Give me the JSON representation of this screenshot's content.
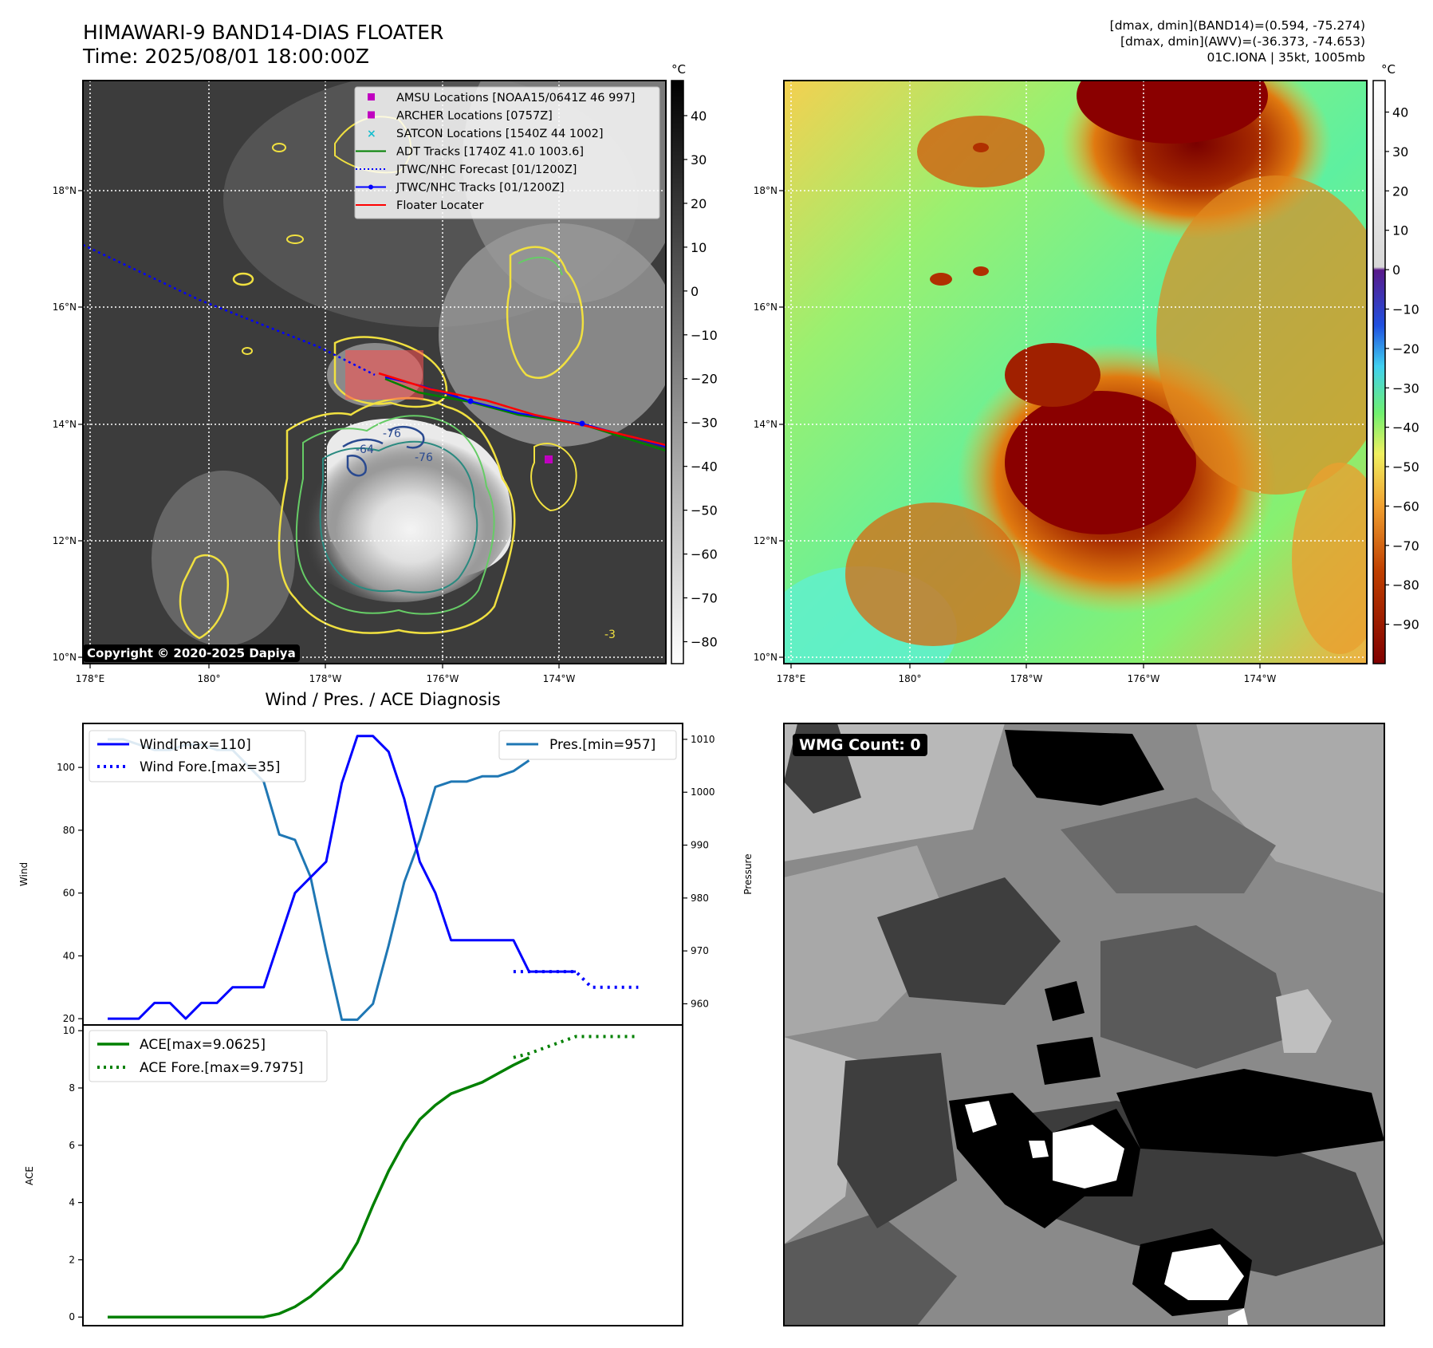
{
  "header": {
    "title_line1": "HIMAWARI-9 BAND14-DIAS FLOATER",
    "title_line2": "Time: 2025/08/01 18:00:00Z",
    "info_line1": "[dmax, dmin](BAND14)=(0.594, -75.274)",
    "info_line2": "[dmax, dmin](AWV)=(-36.373, -74.653)",
    "info_line3": "01C.IONA | 35kt, 1005mb"
  },
  "copyright": "Copyright © 2020-2025 Dapiya",
  "wmg_label": "WMG Count: 0",
  "colors": {
    "wind": "#0000ff",
    "pressure": "#1f77b4",
    "ace": "#008000",
    "adt": "#008000",
    "jtwc": "#0000ff",
    "floater": "#ff0000",
    "amsu": "#c000c0",
    "satcon": "#17becf"
  },
  "chart_data": [
    {
      "type": "heatmap",
      "panel": "IR grayscale with contours",
      "unit_label": "°C",
      "colorbar_ticks": [
        40,
        30,
        20,
        10,
        0,
        -10,
        -20,
        -30,
        -40,
        -50,
        -60,
        -70,
        -80
      ],
      "colorbar_range": [
        -85,
        48
      ],
      "x_ticks": [
        "178°E",
        "180°",
        "178°W",
        "176°W",
        "174°W"
      ],
      "y_ticks": [
        "18°N",
        "16°N",
        "14°N",
        "12°N",
        "10°N"
      ],
      "contour_labels": [
        "-64",
        "-76",
        "-76",
        "-3"
      ],
      "legend": [
        {
          "label": "AMSU Locations [NOAA15/0641Z 46 997]",
          "marker": "square",
          "color": "#c000c0"
        },
        {
          "label": "ARCHER Locations [0757Z]",
          "marker": "square",
          "color": "#c000c0"
        },
        {
          "label": "SATCON Locations [1540Z 44 1002]",
          "marker": "x",
          "color": "#17becf"
        },
        {
          "label": "ADT Tracks [1740Z 41.0 1003.6]",
          "marker": "line",
          "color": "#008000"
        },
        {
          "label": "JTWC/NHC Forecast [01/1200Z]",
          "marker": "dotted",
          "color": "#0000ff"
        },
        {
          "label": "JTWC/NHC Tracks [01/1200Z]",
          "marker": "line-dot",
          "color": "#0000ff"
        },
        {
          "label": "Floater Locater",
          "marker": "line",
          "color": "#ff0000"
        }
      ]
    },
    {
      "type": "heatmap",
      "panel": "IR colour enhanced",
      "unit_label": "°C",
      "colorbar_ticks": [
        40,
        30,
        20,
        10,
        0,
        -10,
        -20,
        -30,
        -40,
        -50,
        -60,
        -70,
        -80,
        -90
      ],
      "colorbar_range": [
        -100,
        48
      ],
      "x_ticks": [
        "178°E",
        "180°",
        "178°W",
        "176°W",
        "174°W"
      ],
      "y_ticks": [
        "18°N",
        "16°N",
        "14°N",
        "12°N",
        "10°N"
      ]
    },
    {
      "type": "line",
      "panel": "wind-pressure",
      "title": "Wind / Pres. / ACE Diagnosis",
      "ylabel": "Wind",
      "y2label": "Pressure",
      "ylim": [
        18,
        114
      ],
      "y2lim": [
        956,
        1013
      ],
      "yticks": [
        20,
        40,
        60,
        80,
        100
      ],
      "y2ticks": [
        960,
        970,
        980,
        990,
        1000,
        1010
      ],
      "xlim": [
        0,
        35
      ],
      "series": [
        {
          "name": "Wind[max=110]",
          "axis": "left",
          "style": "solid",
          "x": [
            0,
            1,
            2,
            3,
            4,
            5,
            6,
            7,
            8,
            9,
            10,
            11,
            12,
            13,
            14,
            15,
            16,
            17,
            18,
            19,
            20,
            21,
            22,
            23,
            24,
            25,
            26,
            27,
            28,
            29,
            30
          ],
          "y": [
            20,
            20,
            20,
            25,
            25,
            20,
            25,
            25,
            30,
            30,
            30,
            45,
            60,
            65,
            70,
            95,
            110,
            110,
            105,
            90,
            70,
            60,
            45,
            45,
            45,
            45,
            45,
            35,
            35,
            35,
            35
          ]
        },
        {
          "name": "Wind Fore.[max=35]",
          "axis": "left",
          "style": "dotted",
          "x": [
            26,
            27,
            28,
            29,
            30,
            31,
            32,
            33,
            34
          ],
          "y": [
            35,
            35,
            35,
            35,
            35,
            30,
            30,
            30,
            30
          ]
        },
        {
          "name": "Pres.[min=957]",
          "axis": "right",
          "style": "solid",
          "x": [
            0,
            1,
            2,
            3,
            4,
            5,
            6,
            7,
            8,
            9,
            10,
            11,
            12,
            13,
            14,
            15,
            16,
            17,
            18,
            19,
            20,
            21,
            22,
            23,
            24,
            25,
            26,
            27
          ],
          "y": [
            1010,
            1010,
            1009,
            1008,
            1008,
            1009,
            1009,
            1008,
            1008,
            1005,
            1002,
            992,
            991,
            984,
            970,
            957,
            957,
            960,
            971,
            983,
            991,
            1001,
            1002,
            1002,
            1003,
            1003,
            1004,
            1006
          ]
        }
      ]
    },
    {
      "type": "line",
      "panel": "ace",
      "ylabel": "ACE",
      "ylim": [
        -0.3,
        10.2
      ],
      "yticks": [
        0,
        2,
        4,
        6,
        8,
        10
      ],
      "xlim": [
        0,
        35
      ],
      "series": [
        {
          "name": "ACE[max=9.0625]",
          "style": "solid",
          "x": [
            0,
            1,
            2,
            3,
            4,
            5,
            6,
            7,
            8,
            9,
            10,
            11,
            12,
            13,
            14,
            15,
            16,
            17,
            18,
            19,
            20,
            21,
            22,
            23,
            24,
            25,
            26,
            27
          ],
          "y": [
            0,
            0,
            0,
            0,
            0,
            0,
            0,
            0,
            0,
            0,
            0,
            0.12,
            0.36,
            0.72,
            1.2,
            1.7,
            2.6,
            3.9,
            5.1,
            6.1,
            6.9,
            7.4,
            7.8,
            8.0,
            8.2,
            8.5,
            8.8,
            9.0625
          ]
        },
        {
          "name": "ACE Fore.[max=9.7975]",
          "style": "dotted",
          "x": [
            26,
            27,
            28,
            29,
            30,
            31,
            32,
            33,
            34
          ],
          "y": [
            9.0625,
            9.2,
            9.4,
            9.6,
            9.7975,
            9.7975,
            9.7975,
            9.7975,
            9.7975
          ]
        }
      ]
    }
  ]
}
